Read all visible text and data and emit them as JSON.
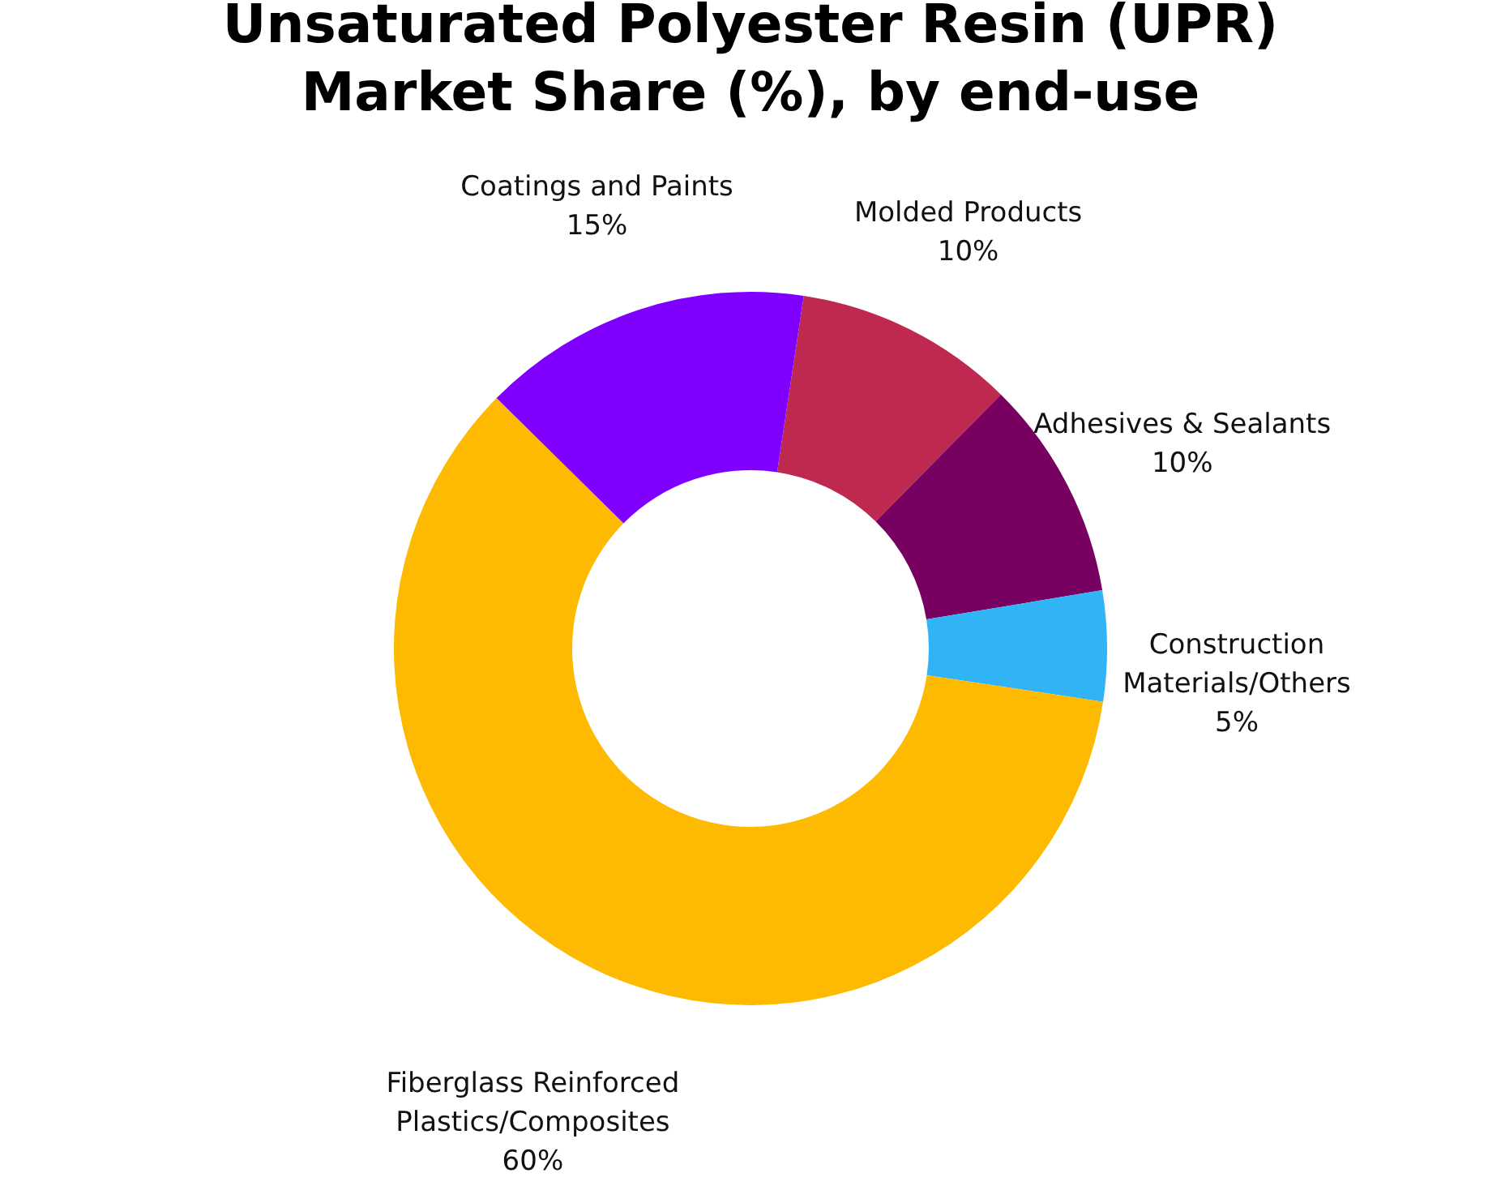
{
  "chart_data": {
    "type": "donut",
    "title": "Unsaturated Polyester Resin (UPR)\nMarket Share (%), by end-use",
    "categories": [
      "Molded Products",
      "Adhesives & Sealants",
      "Construction Materials/Others",
      "Fiberglass Reinforced Plastics/Composites",
      "Coatings and Paints"
    ],
    "values": [
      10,
      10,
      5,
      60,
      15
    ],
    "value_labels": [
      "10%",
      "10%",
      "5%",
      "60%",
      "15%"
    ],
    "colors": [
      "#c0294f",
      "#770060",
      "#30b4f5",
      "#fdba00",
      "#8000ff"
    ]
  }
}
